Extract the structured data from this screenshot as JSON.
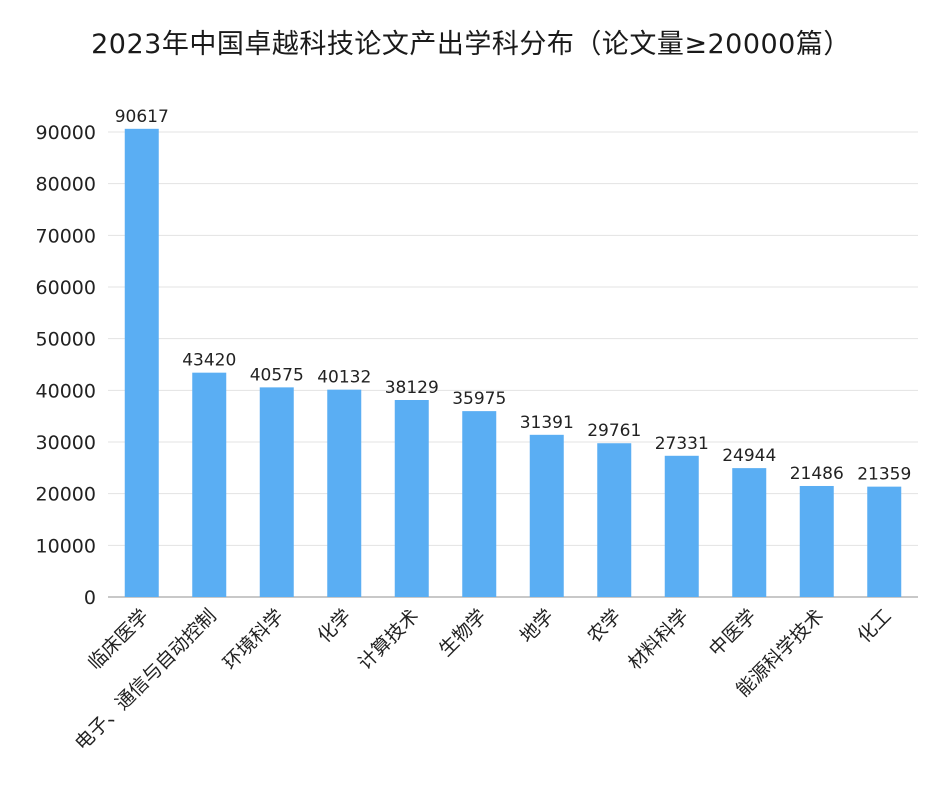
{
  "chart_data": {
    "type": "bar",
    "title": "2023年中国卓越科技论文产出学科分布（论文量≥20000篇）",
    "xlabel": "",
    "ylabel": "",
    "categories": [
      "临床医学",
      "电子、通信与自动控制",
      "环境科学",
      "化学",
      "计算技术",
      "生物学",
      "地学",
      "农学",
      "材料科学",
      "中医学",
      "能源科学技术",
      "化工"
    ],
    "values": [
      90617,
      43420,
      40575,
      40132,
      38129,
      35975,
      31391,
      29761,
      27331,
      24944,
      21486,
      21359
    ],
    "ylim": [
      0,
      90000
    ],
    "yticks": [
      0,
      10000,
      20000,
      30000,
      40000,
      50000,
      60000,
      70000,
      80000,
      90000
    ],
    "grid": true,
    "bar_color": "#5aaef3",
    "grid_color": "#e3e3e3"
  }
}
